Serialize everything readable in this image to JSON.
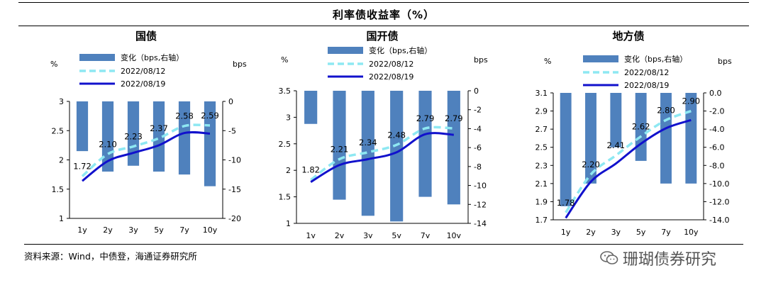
{
  "header": {
    "title": "利率债收益率（%）"
  },
  "footer": {
    "source": "资料来源：Wind，中债登，海通证券研究所"
  },
  "watermark": {
    "text": "珊瑚债券研究",
    "icon": "wechat-icon"
  },
  "legend": {
    "bar": "变化（bps,右轴）",
    "s1": "2022/08/12",
    "s2": "2022/08/19"
  },
  "colors": {
    "bar": "#4f81bd",
    "s1": "#8ee8f2",
    "s2": "#1111cc"
  },
  "chart_data": [
    {
      "type": "bar+line",
      "title": "国债",
      "categories": [
        "1y",
        "2y",
        "3y",
        "5y",
        "7y",
        "10y"
      ],
      "ylabel_left": "%",
      "ylabel_right": "bps",
      "ylim": [
        1,
        3
      ],
      "yticks": [
        "1",
        "1.5",
        "2",
        "2.5",
        "3"
      ],
      "ytick_values": [
        1,
        1.5,
        2,
        2.5,
        3
      ],
      "y2lim": [
        -20,
        0
      ],
      "y2ticks": [
        "-20",
        "-15",
        "-10",
        "-5",
        "0"
      ],
      "y2tick_values": [
        -20,
        -15,
        -10,
        -5,
        0
      ],
      "bars": {
        "name": "变化（bps,右轴）",
        "values": [
          -8.5,
          -12,
          -11,
          -12,
          -12.5,
          -14.5
        ]
      },
      "series": [
        {
          "name": "2022/08/12",
          "values": [
            1.72,
            2.1,
            2.23,
            2.37,
            2.58,
            2.59
          ]
        },
        {
          "name": "2022/08/19",
          "values": [
            1.64,
            1.98,
            2.12,
            2.25,
            2.46,
            2.45
          ]
        }
      ],
      "labels": [
        "1.72",
        "2.10",
        "2.23",
        "2.37",
        "2.58",
        "2.59"
      ]
    },
    {
      "type": "bar+line",
      "title": "国开债",
      "categories": [
        "1y",
        "2y",
        "3y",
        "5y",
        "7y",
        "10y"
      ],
      "ylabel_left": "%",
      "ylabel_right": "bps",
      "ylim": [
        1,
        3.5
      ],
      "yticks": [
        "1",
        "1.5",
        "2",
        "2.5",
        "3",
        "3.5"
      ],
      "ytick_values": [
        1,
        1.5,
        2,
        2.5,
        3,
        3.5
      ],
      "y2lim": [
        -14,
        0
      ],
      "y2ticks": [
        "-14",
        "-12",
        "-10",
        "-8",
        "-6",
        "-4",
        "-2",
        "0"
      ],
      "y2tick_values": [
        -14,
        -12,
        -10,
        -8,
        -6,
        -4,
        -2,
        0
      ],
      "bars": {
        "name": "变化（bps,右轴）",
        "values": [
          -3.5,
          -11.5,
          -13.2,
          -13.8,
          -11.2,
          -12
        ]
      },
      "series": [
        {
          "name": "2022/08/12",
          "values": [
            1.82,
            2.21,
            2.34,
            2.48,
            2.79,
            2.79
          ]
        },
        {
          "name": "2022/08/19",
          "values": [
            1.78,
            2.1,
            2.21,
            2.34,
            2.68,
            2.67
          ]
        }
      ],
      "labels": [
        "1.82",
        "2.21",
        "2.34",
        "2.48",
        "2.79",
        "2.79"
      ]
    },
    {
      "type": "bar+line",
      "title": "地方债",
      "categories": [
        "1y",
        "2y",
        "3y",
        "5y",
        "7y",
        "10y"
      ],
      "ylabel_left": "%",
      "ylabel_right": "bps",
      "ylim": [
        1.7,
        3.1
      ],
      "yticks": [
        "1.7",
        "1.9",
        "2.1",
        "2.3",
        "2.5",
        "2.7",
        "2.9",
        "3.1"
      ],
      "ytick_values": [
        1.7,
        1.9,
        2.1,
        2.3,
        2.5,
        2.7,
        2.9,
        3.1
      ],
      "y2lim": [
        -14,
        0
      ],
      "y2ticks": [
        "-14.0",
        "-12.0",
        "-10.0",
        "-8.0",
        "-6.0",
        "-4.0",
        "-2.0",
        "0.0"
      ],
      "y2tick_values": [
        -14,
        -12,
        -10,
        -8,
        -6,
        -4,
        -2,
        0
      ],
      "bars": {
        "name": "变化（bps,右轴）",
        "values": [
          -12.5,
          -10,
          -6,
          -7.5,
          -10,
          -10
        ]
      },
      "series": [
        {
          "name": "2022/08/12",
          "values": [
            1.78,
            2.2,
            2.41,
            2.62,
            2.8,
            2.9
          ]
        },
        {
          "name": "2022/08/19",
          "values": [
            1.72,
            2.12,
            2.32,
            2.54,
            2.71,
            2.8
          ]
        }
      ],
      "labels": [
        "1.78",
        "2.20",
        "2.41",
        "2.62",
        "2.80",
        "2.90"
      ]
    }
  ]
}
